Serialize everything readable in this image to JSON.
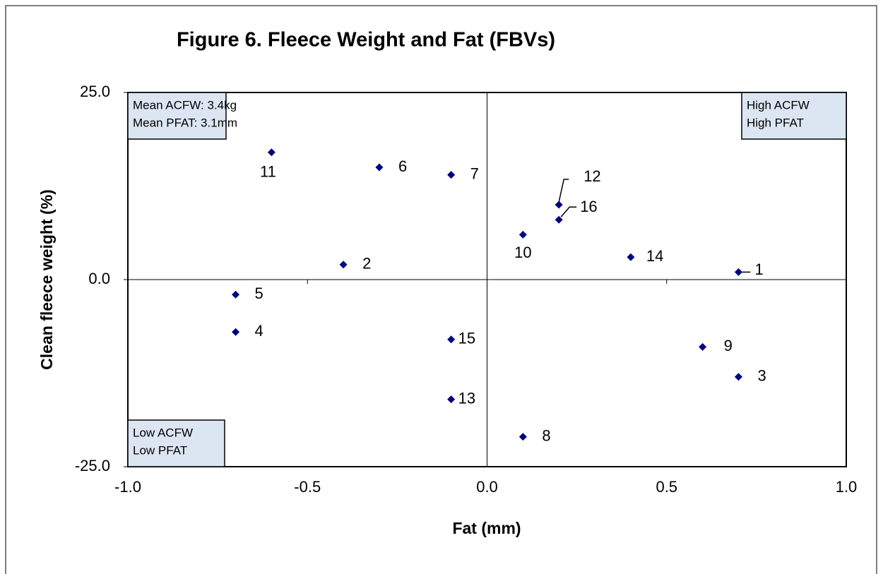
{
  "chart_data": {
    "type": "scatter",
    "title": "Figure 6.  Fleece Weight and Fat (FBVs)",
    "x_label": "Fat (mm)",
    "y_label": "Clean fleece weight  (%)",
    "xlim": [
      -1,
      1
    ],
    "ylim": [
      -25,
      25
    ],
    "xticks": [
      {
        "value": -1,
        "label": "-1.0"
      },
      {
        "value": -0.5,
        "label": "-0.5"
      },
      {
        "value": 0,
        "label": "0.0"
      },
      {
        "value": 0.5,
        "label": "0.5"
      },
      {
        "value": 1,
        "label": "1.0"
      }
    ],
    "yticks": [
      {
        "value": -25,
        "label": "-25.0"
      },
      {
        "value": 0,
        "label": "0.0"
      },
      {
        "value": 25,
        "label": "25.0"
      }
    ],
    "series": [
      {
        "color": "#000080",
        "x": [
          0.7,
          -0.4,
          0.7,
          -0.7,
          -0.7,
          -0.3,
          -0.1,
          0.1,
          0.6,
          0.1,
          -0.6,
          0.2,
          -0.1,
          0.4,
          -0.1,
          0.2
        ],
        "values": [
          1,
          2,
          -13,
          -7,
          -2,
          15,
          14,
          -21,
          -9,
          6,
          17,
          10,
          -16,
          3,
          -8,
          8
        ],
        "labels": [
          "1",
          "2",
          "3",
          "4",
          "5",
          "6",
          "7",
          "8",
          "9",
          "10",
          "11",
          "12",
          "13",
          "14",
          "15",
          "16"
        ]
      }
    ],
    "annotations": [
      [
        "Mean ACFW: 3.4kg",
        "Mean PFAT: 3.1mm"
      ],
      [
        "High ACFW",
        "High PFAT"
      ],
      [
        "Low ACFW",
        "Low PFAT"
      ]
    ]
  }
}
